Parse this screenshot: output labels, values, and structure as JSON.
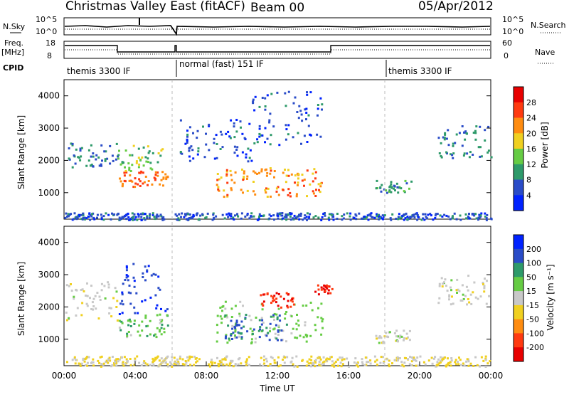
{
  "header": {
    "title": "Christmas Valley East (fitACF)",
    "beam": "Beam 00",
    "date": "05/Apr/2012"
  },
  "panel_labels": {
    "nsky": "N.Sky",
    "freq_line1": "Freq.",
    "freq_line2": "[MHz]",
    "cpid": "CPID",
    "nsearch": "N.Search",
    "nave": "Nave",
    "noise_ticks_left": [
      "10^5",
      "10^0"
    ],
    "noise_ticks_right": [
      "10^5",
      "10^0"
    ],
    "freq_ticks_left": [
      "18",
      "8"
    ],
    "nave_ticks_right": [
      "60",
      "0"
    ]
  },
  "cpid_segments": [
    {
      "label": "themis 3300 IF",
      "start_hour": 0
    },
    {
      "label": "normal (fast) 151 IF",
      "start_hour": 6.1
    },
    {
      "label": "themis 3300 IF",
      "start_hour": 18
    }
  ],
  "chart_data": [
    {
      "type": "heatmap",
      "name": "power",
      "ylabel": "Slant Range [km]",
      "xlabel": "Time UT",
      "xlim": [
        0,
        24
      ],
      "ylim": [
        180,
        4500
      ],
      "y_ticks": [
        1000,
        2000,
        3000,
        4000
      ],
      "colorbar": {
        "label": "Power [dB]",
        "ticks": [
          "4",
          "8",
          "12",
          "16",
          "20",
          "24",
          "28"
        ],
        "range": [
          0,
          32
        ],
        "colors": [
          "#0022ff",
          "#2a4cc8",
          "#2e9a6a",
          "#66cc44",
          "#f0d020",
          "#ff8c10",
          "#ff3a10",
          "#e80000"
        ]
      },
      "regions": [
        {
          "t0": 0.2,
          "t1": 3.0,
          "r0": 1800,
          "r1": 2600,
          "level": 8
        },
        {
          "t0": 3.0,
          "t1": 5.8,
          "r0": 1200,
          "r1": 1700,
          "level": 24
        },
        {
          "t0": 3.0,
          "t1": 5.5,
          "r0": 1700,
          "r1": 2500,
          "level": 14
        },
        {
          "t0": 6.5,
          "t1": 10.5,
          "r0": 2000,
          "r1": 3300,
          "level": 6
        },
        {
          "t0": 8.5,
          "t1": 14.5,
          "r0": 900,
          "r1": 1800,
          "level": 22
        },
        {
          "t0": 10.5,
          "t1": 14.5,
          "r0": 2500,
          "r1": 4200,
          "level": 6
        },
        {
          "t0": 17.5,
          "t1": 19.5,
          "r0": 1000,
          "r1": 1400,
          "level": 10
        },
        {
          "t0": 21.0,
          "t1": 24.0,
          "r0": 2100,
          "r1": 3100,
          "level": 8
        },
        {
          "t0": 0.0,
          "t1": 24.0,
          "r0": 180,
          "r1": 400,
          "level": 6
        }
      ]
    },
    {
      "type": "heatmap",
      "name": "velocity",
      "ylabel": "Slant Range [km]",
      "xlabel": "Time UT",
      "xlim": [
        0,
        24
      ],
      "ylim": [
        180,
        4500
      ],
      "y_ticks": [
        1000,
        2000,
        3000,
        4000
      ],
      "x_ticks": [
        "00:00",
        "04:00",
        "08:00",
        "12:00",
        "16:00",
        "20:00",
        "00:00"
      ],
      "colorbar": {
        "label": "Velocity [m s⁻¹]",
        "ticks": [
          "200",
          "100",
          "50",
          "15",
          "-15",
          "-50",
          "-100",
          "-200"
        ],
        "range": [
          -250,
          250
        ],
        "colors": [
          "#0022ff",
          "#2a4cc8",
          "#2e9a6a",
          "#66cc44",
          "#c8c8c8",
          "#f0d020",
          "#ff8c10",
          "#ff3a10",
          "#e80000"
        ]
      },
      "regions": [
        {
          "t0": 0.0,
          "t1": 3.0,
          "r0": 1600,
          "r1": 2800,
          "level": 0
        },
        {
          "t0": 3.0,
          "t1": 5.8,
          "r0": 1800,
          "r1": 3400,
          "level": 180
        },
        {
          "t0": 3.0,
          "t1": 5.8,
          "r0": 1100,
          "r1": 1800,
          "level": 60
        },
        {
          "t0": 8.5,
          "t1": 14.5,
          "r0": 900,
          "r1": 2200,
          "level": 40
        },
        {
          "t0": 9.0,
          "t1": 12.5,
          "r0": 1000,
          "r1": 1800,
          "level": 150
        },
        {
          "t0": 11.0,
          "t1": 13.0,
          "r0": 2000,
          "r1": 2500,
          "level": -180
        },
        {
          "t0": 14.0,
          "t1": 15.2,
          "r0": 2400,
          "r1": 2700,
          "level": -200
        },
        {
          "t0": 17.5,
          "t1": 19.5,
          "r0": 900,
          "r1": 1300,
          "level": 0
        },
        {
          "t0": 21.0,
          "t1": 24.0,
          "r0": 2100,
          "r1": 3000,
          "level": 0
        },
        {
          "t0": 0.0,
          "t1": 24.0,
          "r0": 180,
          "r1": 500,
          "level": -30
        }
      ]
    }
  ]
}
